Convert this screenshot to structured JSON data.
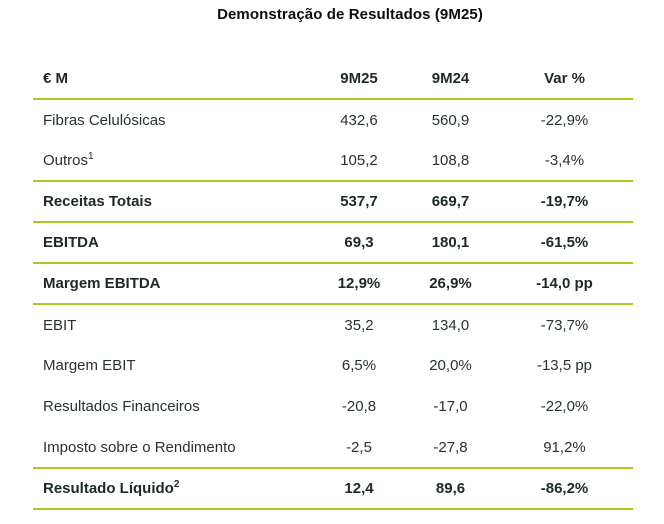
{
  "title": "Demonstração de Resultados (9M25)",
  "colors": {
    "accent_green": "#a4cc1e",
    "text_regular": "#26332f",
    "text_bold": "#1c2a27",
    "title": "#0d0d0d"
  },
  "table": {
    "headers": {
      "unit": "€ M",
      "period_current": "9M25",
      "period_previous": "9M24",
      "variation": "Var %"
    },
    "rows": [
      {
        "label": "Fibras Celulósicas",
        "sup": "",
        "v9m25": "432,6",
        "v9m24": "560,9",
        "var": "-22,9%"
      },
      {
        "label": "Outros",
        "sup": "1",
        "v9m25": "105,2",
        "v9m24": "108,8",
        "var": "-3,4%"
      },
      {
        "label": "Receitas Totais",
        "sup": "",
        "v9m25": "537,7",
        "v9m24": "669,7",
        "var": "-19,7%"
      },
      {
        "label": "EBITDA",
        "sup": "",
        "v9m25": "69,3",
        "v9m24": "180,1",
        "var": "-61,5%"
      },
      {
        "label": "Margem EBITDA",
        "sup": "",
        "v9m25": "12,9%",
        "v9m24": "26,9%",
        "var": "-14,0 pp"
      },
      {
        "label": "EBIT",
        "sup": "",
        "v9m25": "35,2",
        "v9m24": "134,0",
        "var": "-73,7%"
      },
      {
        "label": "Margem EBIT",
        "sup": "",
        "v9m25": "6,5%",
        "v9m24": "20,0%",
        "var": "-13,5 pp"
      },
      {
        "label": "Resultados Financeiros",
        "sup": "",
        "v9m25": "-20,8",
        "v9m24": "-17,0",
        "var": "-22,0%"
      },
      {
        "label": "Imposto sobre o Rendimento",
        "sup": "",
        "v9m25": "-2,5",
        "v9m24": "-27,8",
        "var": "91,2%"
      },
      {
        "label": "Resultado Líquido",
        "sup": "2",
        "v9m25": "12,4",
        "v9m24": "89,6",
        "var": "-86,2%"
      }
    ]
  }
}
